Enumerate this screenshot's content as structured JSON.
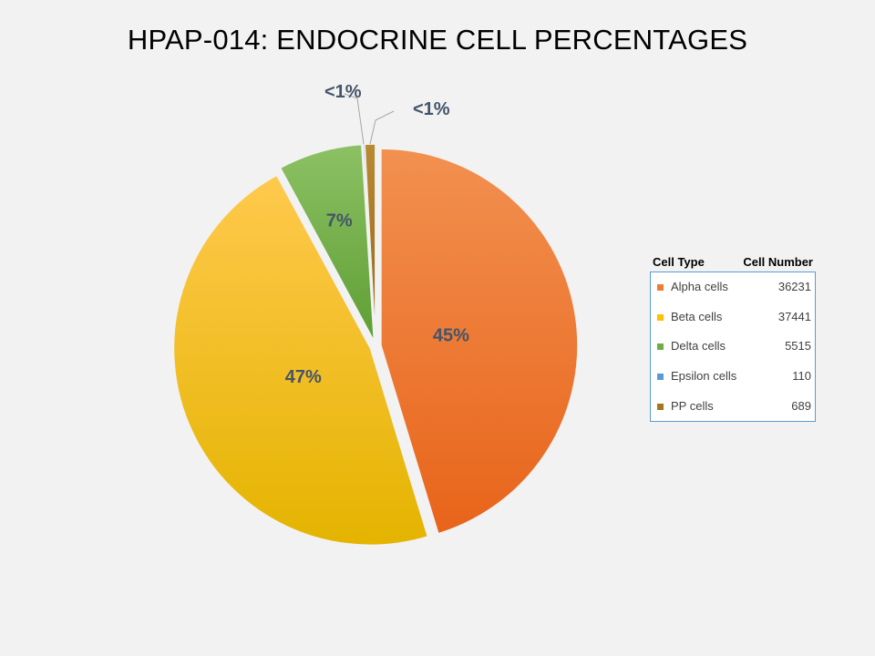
{
  "title": "HPAP-014: ENDOCRINE CELL PERCENTAGES",
  "chart_data": {
    "type": "pie",
    "title": "HPAP-014: ENDOCRINE CELL PERCENTAGES",
    "legend_placement": "right",
    "legend_headers": {
      "name": "Cell Type",
      "value": "Cell Number"
    },
    "slices": [
      {
        "name": "Alpha cells",
        "value": 36231,
        "label": "45%",
        "color": "#ed7d31",
        "color_light": "#f29050",
        "color_dark": "#e8641a"
      },
      {
        "name": "Beta cells",
        "value": 37441,
        "label": "47%",
        "color": "#ffc000",
        "color_light": "#ffc94d",
        "color_dark": "#e4b400"
      },
      {
        "name": "Delta cells",
        "value": 5515,
        "label": "7%",
        "color": "#70ad47",
        "color_light": "#8cc164",
        "color_dark": "#5f9e34"
      },
      {
        "name": "Epsilon cells",
        "value": 110,
        "label": "<1%",
        "color": "#5b9bd5",
        "color_light": "#75addf",
        "color_dark": "#4a8ac5"
      },
      {
        "name": "PP cells",
        "value": 689,
        "label": "<1%",
        "color": "#a5761f",
        "color_light": "#b98a33",
        "color_dark": "#946818"
      }
    ]
  }
}
